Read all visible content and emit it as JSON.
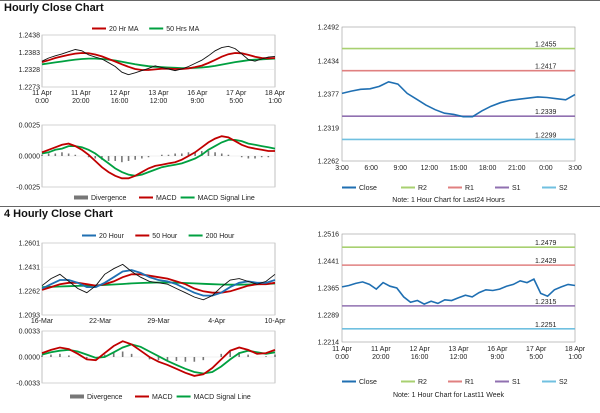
{
  "sections": {
    "hourly_title": "Hourly Close Chart",
    "four_hourly_title": "4 Hourly Close Chart"
  },
  "colors": {
    "price": "#111111",
    "ma1_h": "#c00000",
    "ma2_h": "#00a040",
    "close": "#1f6fb2",
    "r2": "#a8d070",
    "r1": "#e08080",
    "s1": "#9070b0",
    "s2": "#70c0e0",
    "macd": "#c00000",
    "signal": "#00a040",
    "divergence": "#777777",
    "ma20": "#1f6fb2",
    "ma50": "#c00000",
    "ma200": "#00a040"
  },
  "chart_data": [
    {
      "id": "hourly_price",
      "type": "line",
      "legend": [
        "20 Hr MA",
        "50 Hrs MA"
      ],
      "yticks": [
        "1.2438",
        "1.2383",
        "1.2328",
        "1.2273"
      ],
      "ylim": [
        1.2273,
        1.2438
      ],
      "xticks": [
        "11 Apr\n0:00",
        "11 Apr\n20:00",
        "12 Apr\n16:00",
        "13 Apr\n12:00",
        "16 Apr\n9:00",
        "17 Apr\n5:00",
        "18 Apr\n1:00"
      ],
      "series": [
        {
          "name": "Price",
          "values": [
            1.2355,
            1.2365,
            1.2372,
            1.2378,
            1.2385,
            1.2392,
            1.2388,
            1.2375,
            1.2368,
            1.2362,
            1.235,
            1.2338,
            1.232,
            1.2312,
            1.2318,
            1.2325,
            1.2332,
            1.234,
            1.2335,
            1.233,
            1.2325,
            1.233,
            1.2338,
            1.2348,
            1.2358,
            1.2372,
            1.2388,
            1.2398,
            1.2402,
            1.2395,
            1.2378,
            1.236,
            1.2355,
            1.2362,
            1.2368,
            1.237
          ]
        },
        {
          "name": "20 Hr MA",
          "values": [
            1.2352,
            1.2358,
            1.2365,
            1.237,
            1.2375,
            1.2379,
            1.2381,
            1.238,
            1.2376,
            1.237,
            1.2362,
            1.2354,
            1.2345,
            1.2337,
            1.233,
            1.2327,
            1.2327,
            1.2329,
            1.2331,
            1.2331,
            1.233,
            1.233,
            1.2332,
            1.2336,
            1.2341,
            1.2349,
            1.2359,
            1.2369,
            1.2377,
            1.2381,
            1.238,
            1.2375,
            1.2369,
            1.2365,
            1.2364,
            1.2365
          ]
        },
        {
          "name": "50 Hrs MA",
          "values": [
            1.2345,
            1.2348,
            1.2351,
            1.2354,
            1.2357,
            1.236,
            1.2362,
            1.2363,
            1.2363,
            1.2362,
            1.236,
            1.2357,
            1.2353,
            1.2349,
            1.2345,
            1.2342,
            1.2339,
            1.2337,
            1.2336,
            1.2335,
            1.2334,
            1.2333,
            1.2333,
            1.2334,
            1.2335,
            1.2337,
            1.234,
            1.2344,
            1.2348,
            1.2352,
            1.2355,
            1.2358,
            1.236,
            1.2361,
            1.2362,
            1.2363
          ]
        }
      ]
    },
    {
      "id": "hourly_macd",
      "type": "line",
      "legend": [
        "Divergence",
        "MACD",
        "MACD Signal Line"
      ],
      "yticks": [
        "0.0025",
        "0.0000",
        "-0.0025"
      ],
      "ylim": [
        -0.0025,
        0.0025
      ],
      "series": [
        {
          "name": "Divergence",
          "values": [
            0.0001,
            0.0002,
            0.0002,
            0.0003,
            0.0002,
            0.0001,
            0.0,
            -0.0001,
            -0.0002,
            -0.0003,
            -0.0004,
            -0.0004,
            -0.0005,
            -0.0004,
            -0.0003,
            -0.0002,
            -0.0001,
            0.0,
            0.0001,
            0.0001,
            0.0002,
            0.0002,
            0.0003,
            0.0003,
            0.0004,
            0.0004,
            0.0003,
            0.0002,
            0.0001,
            0.0,
            -0.0001,
            -0.0002,
            -0.0002,
            -0.0001,
            -0.0001,
            0.0
          ]
        },
        {
          "name": "MACD",
          "values": [
            0.0003,
            0.0005,
            0.0007,
            0.0009,
            0.001,
            0.0008,
            0.0005,
            0.0001,
            -0.0004,
            -0.0009,
            -0.0013,
            -0.0016,
            -0.0018,
            -0.0018,
            -0.0016,
            -0.0013,
            -0.001,
            -0.0008,
            -0.0007,
            -0.0006,
            -0.0005,
            -0.0003,
            0.0,
            0.0003,
            0.0007,
            0.0011,
            0.0014,
            0.0016,
            0.0015,
            0.0012,
            0.0009,
            0.0007,
            0.0006,
            0.0005,
            0.0004,
            0.0004
          ]
        },
        {
          "name": "MACD Signal Line",
          "values": [
            0.0002,
            0.0003,
            0.0005,
            0.0006,
            0.0008,
            0.0008,
            0.0007,
            0.0005,
            0.0002,
            -0.0002,
            -0.0006,
            -0.001,
            -0.0013,
            -0.0015,
            -0.0016,
            -0.0015,
            -0.0013,
            -0.0011,
            -0.0009,
            -0.0008,
            -0.0007,
            -0.0006,
            -0.0004,
            -0.0002,
            0.0001,
            0.0005,
            0.0008,
            0.0011,
            0.0013,
            0.0013,
            0.0012,
            0.001,
            0.0009,
            0.0008,
            0.0007,
            0.0006
          ]
        }
      ]
    },
    {
      "id": "hourly_close",
      "type": "line",
      "yticks": [
        "1.2492",
        "1.2434",
        "1.2377",
        "1.2319",
        "1.2262"
      ],
      "ylim": [
        1.2262,
        1.2492
      ],
      "xticks": [
        "3:00",
        "6:00",
        "9:00",
        "12:00",
        "15:00",
        "18:00",
        "21:00",
        "0:00",
        "3:00"
      ],
      "levels": [
        {
          "name": "R2",
          "value": 1.2455,
          "label": "1.2455"
        },
        {
          "name": "R1",
          "value": 1.2417,
          "label": "1.2417"
        },
        {
          "name": "S1",
          "value": 1.2339,
          "label": "1.2339"
        },
        {
          "name": "S2",
          "value": 1.2299,
          "label": "1.2299"
        }
      ],
      "series": [
        {
          "name": "Close",
          "values": [
            1.2378,
            1.2382,
            1.2385,
            1.2386,
            1.239,
            1.2398,
            1.2394,
            1.2378,
            1.2368,
            1.2358,
            1.235,
            1.2344,
            1.2342,
            1.2338,
            1.2338,
            1.2348,
            1.2356,
            1.2362,
            1.2366,
            1.2368,
            1.237,
            1.2372,
            1.2371,
            1.2369,
            1.2367,
            1.2376
          ]
        }
      ],
      "legend": [
        "Close",
        "R2",
        "R1",
        "S1",
        "S2"
      ],
      "note": "Note: 1 Hour Chart for Last24 Hours"
    },
    {
      "id": "four_hourly_price",
      "type": "line",
      "legend": [
        "20 Hour",
        "50 Hour",
        "200 Hour"
      ],
      "yticks": [
        "1.2601",
        "1.2431",
        "1.2262",
        "1.2093"
      ],
      "ylim": [
        1.2093,
        1.2601
      ],
      "xticks": [
        "16-Mar",
        "22-Mar",
        "29-Mar",
        "4-Apr",
        "10-Apr"
      ],
      "series": [
        {
          "name": "Price",
          "values": [
            1.23,
            1.235,
            1.238,
            1.233,
            1.228,
            1.225,
            1.23,
            1.238,
            1.242,
            1.245,
            1.24,
            1.236,
            1.233,
            1.232,
            1.231,
            1.228,
            1.225,
            1.222,
            1.22,
            1.223,
            1.229,
            1.234,
            1.235,
            1.233,
            1.231,
            1.233,
            1.238
          ]
        },
        {
          "name": "20 Hour",
          "values": [
            1.228,
            1.231,
            1.234,
            1.234,
            1.232,
            1.229,
            1.229,
            1.232,
            1.236,
            1.24,
            1.241,
            1.239,
            1.236,
            1.234,
            1.233,
            1.231,
            1.228,
            1.225,
            1.223,
            1.223,
            1.225,
            1.229,
            1.232,
            1.233,
            1.232,
            1.232,
            1.234
          ]
        },
        {
          "name": "50 Hour",
          "values": [
            1.227,
            1.229,
            1.231,
            1.232,
            1.232,
            1.231,
            1.23,
            1.231,
            1.233,
            1.236,
            1.238,
            1.238,
            1.237,
            1.236,
            1.235,
            1.233,
            1.231,
            1.228,
            1.226,
            1.225,
            1.225,
            1.226,
            1.228,
            1.23,
            1.231,
            1.231,
            1.232
          ]
        },
        {
          "name": "200 Hour",
          "values": [
            1.229,
            1.2292,
            1.2294,
            1.2296,
            1.2298,
            1.23,
            1.2302,
            1.2305,
            1.2308,
            1.2312,
            1.2316,
            1.2319,
            1.2321,
            1.2322,
            1.2322,
            1.2321,
            1.2319,
            1.2316,
            1.2313,
            1.231,
            1.2308,
            1.2307,
            1.2307,
            1.2308,
            1.231,
            1.2312,
            1.2315
          ]
        }
      ]
    },
    {
      "id": "four_hourly_macd",
      "type": "line",
      "legend": [
        "Divergence",
        "MACD",
        "MACD Signal Line"
      ],
      "yticks": [
        "0.0033",
        "0.0000",
        "-0.0033"
      ],
      "ylim": [
        -0.0033,
        0.0033
      ],
      "series": [
        {
          "name": "Divergence",
          "values": [
            0.0002,
            0.0003,
            0.0004,
            0.0002,
            0.0,
            -0.0002,
            -0.0001,
            0.0003,
            0.0006,
            0.0007,
            0.0004,
            0.0,
            -0.0003,
            -0.0004,
            -0.0004,
            -0.0005,
            -0.0006,
            -0.0006,
            -0.0004,
            0.0,
            0.0004,
            0.0007,
            0.0006,
            0.0003,
            0.0,
            0.0001,
            0.0003
          ]
        },
        {
          "name": "MACD",
          "values": [
            0.0005,
            0.0009,
            0.0012,
            0.001,
            0.0004,
            -0.0003,
            -0.0004,
            0.0005,
            0.0014,
            0.002,
            0.0016,
            0.0008,
            0.0,
            -0.0006,
            -0.001,
            -0.0015,
            -0.002,
            -0.0024,
            -0.0022,
            -0.0014,
            -0.0003,
            0.0008,
            0.0012,
            0.0009,
            0.0004,
            0.0005,
            0.0009
          ]
        },
        {
          "name": "MACD Signal Line",
          "values": [
            0.0003,
            0.0006,
            0.0008,
            0.0009,
            0.0007,
            0.0003,
            -0.0001,
            0.0,
            0.0006,
            0.0012,
            0.0016,
            0.0013,
            0.0007,
            0.0001,
            -0.0005,
            -0.001,
            -0.0015,
            -0.0019,
            -0.0021,
            -0.0019,
            -0.0012,
            -0.0003,
            0.0005,
            0.0008,
            0.0006,
            0.0004,
            0.0006
          ]
        }
      ]
    },
    {
      "id": "four_hourly_close",
      "type": "line",
      "yticks": [
        "1.2516",
        "1.2441",
        "1.2365",
        "1.2289",
        "1.2214"
      ],
      "ylim": [
        1.2214,
        1.2516
      ],
      "xticks": [
        "11 Apr\n0:00",
        "11 Apr\n20:00",
        "12 Apr\n16:00",
        "13 Apr\n12:00",
        "16 Apr\n9:00",
        "17 Apr\n5:00",
        "18 Apr\n1:00"
      ],
      "levels": [
        {
          "name": "R2",
          "value": 1.2479,
          "label": "1.2479"
        },
        {
          "name": "R1",
          "value": 1.2429,
          "label": "1.2429"
        },
        {
          "name": "S1",
          "value": 1.2315,
          "label": "1.2315"
        },
        {
          "name": "S2",
          "value": 1.2251,
          "label": "1.2251"
        }
      ],
      "series": [
        {
          "name": "Close",
          "values": [
            1.2368,
            1.2372,
            1.2378,
            1.2382,
            1.2375,
            1.2362,
            1.238,
            1.237,
            1.2365,
            1.234,
            1.2325,
            1.233,
            1.232,
            1.2328,
            1.2322,
            1.2332,
            1.233,
            1.2338,
            1.2345,
            1.234,
            1.2352,
            1.236,
            1.2358,
            1.2362,
            1.237,
            1.2375,
            1.2385,
            1.238,
            1.239,
            1.235,
            1.2342,
            1.236,
            1.2368,
            1.2375,
            1.2372
          ]
        }
      ],
      "legend": [
        "Close",
        "R2",
        "R1",
        "S1",
        "S2"
      ],
      "note": "Note: 1 Hour Chart for Last11 Week"
    }
  ]
}
